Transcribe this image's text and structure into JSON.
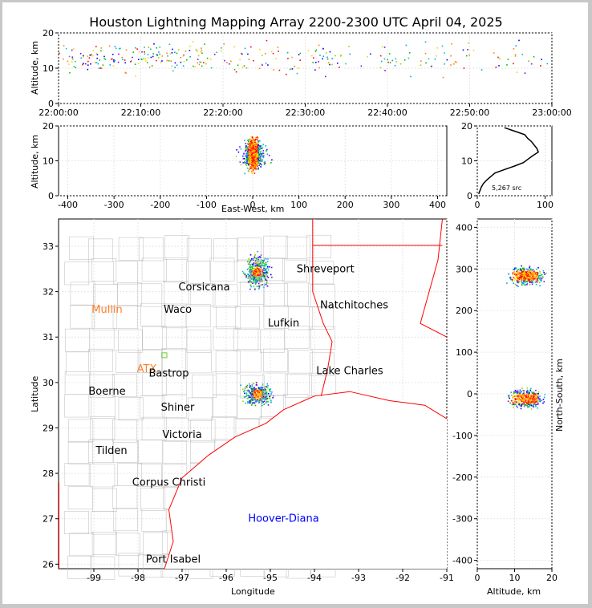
{
  "title": "Houston Lightning Mapping Array 2200-2300 UTC April 04, 2025",
  "source_count": "5,267 src",
  "colors": {
    "frame": "#c8c8c8",
    "state_border": "#ff0000",
    "county_border": "#bbbbbb",
    "special_label": "#ff7f2a",
    "hurricane_label": "#0000ff"
  },
  "chart_data": [
    {
      "type": "scatter",
      "panel": "time-altitude",
      "ylabel": "Altitude, km",
      "ylim": [
        0,
        20
      ],
      "xticks": [
        "22:00:00",
        "22:10:00",
        "22:20:00",
        "22:30:00",
        "22:40:00",
        "22:50:00",
        "23:00:00"
      ],
      "yticks": [
        "0",
        "10",
        "20"
      ],
      "grid": true
    },
    {
      "type": "scatter",
      "panel": "east-west-altitude",
      "xlabel": "East-West, km",
      "ylabel": "Altitude, km",
      "xlim": [
        -420,
        420
      ],
      "ylim": [
        0,
        20
      ],
      "xticks": [
        "-400",
        "-300",
        "-200",
        "-100",
        "0",
        "100",
        "200",
        "300",
        "400"
      ],
      "yticks": [
        "0",
        "10",
        "20"
      ],
      "grid": true
    },
    {
      "type": "line",
      "panel": "altitude-histogram",
      "xlim": [
        0,
        110
      ],
      "ylim": [
        0,
        20
      ],
      "xticks": [
        "0",
        "100"
      ],
      "yticks": [
        "0",
        "10",
        "20"
      ],
      "counts_by_altitude": [
        {
          "alt": 0.5,
          "n": 2
        },
        {
          "alt": 1.5,
          "n": 4
        },
        {
          "alt": 2.5,
          "n": 6
        },
        {
          "alt": 3.5,
          "n": 9
        },
        {
          "alt": 4.5,
          "n": 14
        },
        {
          "alt": 5.5,
          "n": 20
        },
        {
          "alt": 6.5,
          "n": 26
        },
        {
          "alt": 7.5,
          "n": 40
        },
        {
          "alt": 8.5,
          "n": 55
        },
        {
          "alt": 9.5,
          "n": 68
        },
        {
          "alt": 10.5,
          "n": 75
        },
        {
          "alt": 11.5,
          "n": 82
        },
        {
          "alt": 12.5,
          "n": 90
        },
        {
          "alt": 13.5,
          "n": 88
        },
        {
          "alt": 14.5,
          "n": 84
        },
        {
          "alt": 15.5,
          "n": 80
        },
        {
          "alt": 16.5,
          "n": 74
        },
        {
          "alt": 17.5,
          "n": 70
        },
        {
          "alt": 18.5,
          "n": 55
        },
        {
          "alt": 19.5,
          "n": 40
        }
      ],
      "grid": true
    },
    {
      "type": "scatter",
      "panel": "plan-view-map",
      "xlabel": "Longitude",
      "ylabel": "Latitude",
      "xlim": [
        -99.8,
        -91
      ],
      "ylim": [
        25.9,
        33.6
      ],
      "xticks": [
        "-99",
        "-98",
        "-97",
        "-96",
        "-95",
        "-94",
        "-93",
        "-92",
        "-91"
      ],
      "yticks": [
        "26",
        "27",
        "28",
        "29",
        "30",
        "31",
        "32",
        "33"
      ],
      "clusters": [
        {
          "name": "north",
          "lon_range": [
            -95.7,
            -94.9
          ],
          "lat_range": [
            31.9,
            33.0
          ]
        },
        {
          "name": "south",
          "lon_range": [
            -95.8,
            -94.8
          ],
          "lat_range": [
            29.4,
            30.1
          ]
        }
      ],
      "cities": [
        {
          "name": "Shreveport",
          "lon": -93.75,
          "lat": 32.5
        },
        {
          "name": "Corsicana",
          "lon": -96.5,
          "lat": 32.1
        },
        {
          "name": "Mullin",
          "lon": -98.7,
          "lat": 31.6,
          "style": "special"
        },
        {
          "name": "Waco",
          "lon": -97.1,
          "lat": 31.6
        },
        {
          "name": "Natchitoches",
          "lon": -93.1,
          "lat": 31.7
        },
        {
          "name": "Lufkin",
          "lon": -94.7,
          "lat": 31.3
        },
        {
          "name": "ATX",
          "lon": -97.8,
          "lat": 30.3,
          "style": "special"
        },
        {
          "name": "Bastrop",
          "lon": -97.3,
          "lat": 30.2
        },
        {
          "name": "Lake Charles",
          "lon": -93.2,
          "lat": 30.25
        },
        {
          "name": "Boerne",
          "lon": -98.7,
          "lat": 29.8
        },
        {
          "name": "Shiner",
          "lon": -97.1,
          "lat": 29.45
        },
        {
          "name": "Victoria",
          "lon": -97.0,
          "lat": 28.85
        },
        {
          "name": "Tilden",
          "lon": -98.6,
          "lat": 28.5
        },
        {
          "name": "Corpus Christi",
          "lon": -97.3,
          "lat": 27.8
        },
        {
          "name": "Hoover-Diana",
          "lon": -94.7,
          "lat": 27.0,
          "style": "hurricane"
        },
        {
          "name": "Port Isabel",
          "lon": -97.2,
          "lat": 26.1
        }
      ],
      "grid": true
    },
    {
      "type": "scatter",
      "panel": "altitude-north-south",
      "xlabel": "Altitude, km",
      "ylabel": "North-South, km",
      "xlim": [
        0,
        20
      ],
      "ylim": [
        -420,
        420
      ],
      "xticks": [
        "0",
        "10",
        "20"
      ],
      "yticks": [
        "-400",
        "-300",
        "-200",
        "-100",
        "0",
        "100",
        "200",
        "300",
        "400"
      ],
      "grid": true
    }
  ]
}
